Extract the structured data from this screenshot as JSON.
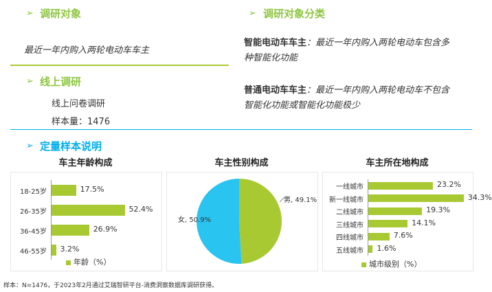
{
  "sections": {
    "research_subject": {
      "title": "调研对象",
      "text": "最近一年内购入两轮电动车车主"
    },
    "online": {
      "title": "线上调研",
      "method": "线上问卷调研",
      "sample": "样本量：1476"
    },
    "classification": {
      "title": "调研对象分类",
      "smart_label": "智能电动车车主",
      "smart_text_1": "：最近一年内购入两轮电动车包含多",
      "smart_text_2": "种智能化功能",
      "normal_label": "普通电动车车主",
      "normal_text_1": "：最近一年内购入两轮电动车不包含",
      "normal_text_2": "智能化功能或智能化功能极少"
    },
    "quant": {
      "title": "定量样本说明"
    }
  },
  "colors": {
    "bar": "#a9c933",
    "pie_male": "#a9c933",
    "pie_female": "#29c4f0",
    "accent_green": "#8dc63f",
    "accent_teal": "#00aeef"
  },
  "footnote": "样本：N=1476，于2023年2月通过艾瑞智研平台-消费洞察数据库调研获得。",
  "chart_data": [
    {
      "type": "bar",
      "orientation": "horizontal",
      "title": "车主年龄构成",
      "categories": [
        "18-25岁",
        "26-35岁",
        "36-45岁",
        "46-55岁"
      ],
      "values": [
        17.5,
        52.4,
        26.9,
        3.2
      ],
      "value_labels": [
        "17.5%",
        "52.4%",
        "26.9%",
        "3.2%"
      ],
      "legend": "年龄（%）",
      "xlim": [
        0,
        60
      ]
    },
    {
      "type": "pie",
      "title": "车主性别构成",
      "categories": [
        "男",
        "女"
      ],
      "values": [
        49.1,
        50.9
      ],
      "value_labels": [
        "男, 49.1%",
        "女, 50.9%"
      ]
    },
    {
      "type": "bar",
      "orientation": "horizontal",
      "title": "车主所在地构成",
      "categories": [
        "一线城市",
        "新一线城市",
        "二线城市",
        "三线城市",
        "四线城市",
        "五线城市"
      ],
      "values": [
        23.2,
        34.3,
        19.3,
        14.1,
        7.6,
        1.6
      ],
      "value_labels": [
        "23.2%",
        "34.3%",
        "19.3%",
        "14.1%",
        "7.6%",
        "1.6%"
      ],
      "legend": "城市级别（%）",
      "xlim": [
        0,
        40
      ]
    }
  ]
}
